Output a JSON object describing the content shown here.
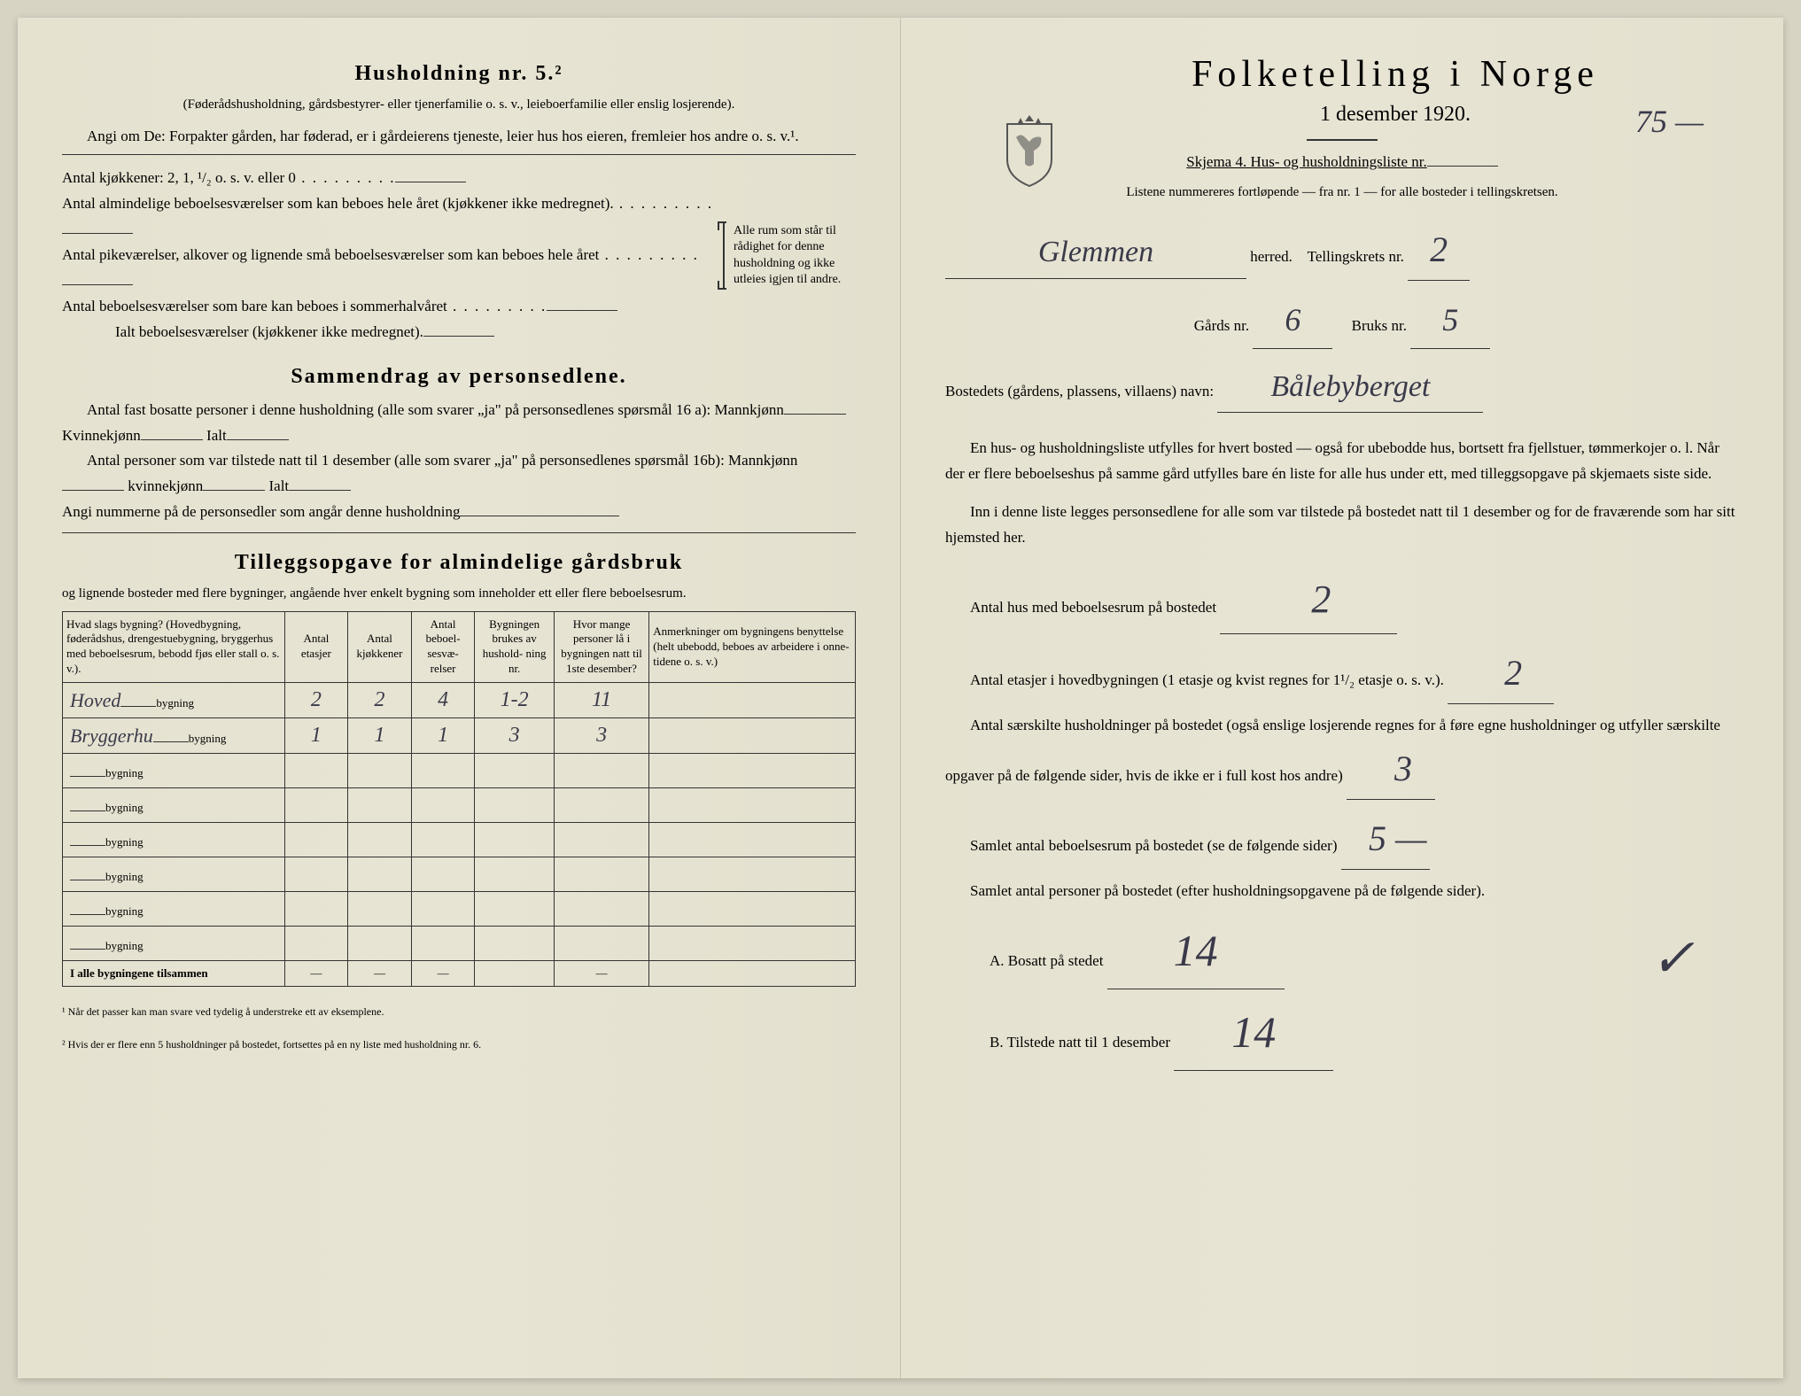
{
  "left": {
    "section1_title": "Husholdning nr. 5.²",
    "section1_subtitle": "(Føderådshusholdning, gårdsbestyrer- eller tjenerfamilie o. s. v., leieboerfamilie eller enslig losjerende).",
    "section1_line1": "Angi om De: Forpakter gården, har føderad, er i gårdeierens tjeneste, leier hus hos eieren, fremleier hos andre o. s. v.¹.",
    "kitchen_line": "Antal kjøkkener: 2, 1, ¹/₂ o. s. v. eller 0",
    "rooms_line1": "Antal almindelige beboelsesværelser som kan beboes hele året (kjøkkener ikke medregnet).",
    "rooms_line2": "Antal pikeværelser, alkover og lignende små beboelsesværelser som kan beboes hele året",
    "rooms_line3": "Antal beboelsesværelser som bare kan beboes i sommerhalvåret",
    "rooms_total": "Ialt beboelsesværelser (kjøkkener ikke medregnet).",
    "brace_text": "Alle rum som står til rådighet for denne husholdning og ikke utleies igjen til andre.",
    "section2_title": "Sammendrag av personsedlene.",
    "section2_line1": "Antal fast bosatte personer i denne husholdning (alle som svarer „ja\" på personsedlenes spørsmål 16 a): Mannkjønn",
    "section2_kvinne": "Kvinnekjønn",
    "section2_ialt": "Ialt",
    "section2_line2": "Antal personer som var tilstede natt til 1 desember (alle som svarer „ja\" på personsedlenes spørsmål 16b): Mannkjønn",
    "section2_kvinne2": "kvinnekjønn",
    "section2_ialt2": "Ialt",
    "section2_line3": "Angi nummerne på de personsedler som angår denne husholdning",
    "section3_title": "Tilleggsopgave for almindelige gårdsbruk",
    "section3_subtitle": "og lignende bosteder med flere bygninger, angående hver enkelt bygning som inneholder ett eller flere beboelsesrum.",
    "table": {
      "headers": [
        "Hvad slags bygning?\n(Hovedbygning, føderådshus, drengestuebygning, bryggerhus med beboelsesrum, bebodd fjøs eller stall o. s. v.).",
        "Antal\netasjer",
        "Antal\nkjøkkener",
        "Antal\nbeboel-\nsesvæ-\nrelser",
        "Bygningen\nbrukes av\nhushold-\nning nr.",
        "Hvor mange\npersoner lå\ni bygningen\nnatt til 1ste\ndesember?",
        "Anmerkninger om bygningens benyttelse (helt ubebodd, beboes av arbeidere i onne-tidene o. s. v.)"
      ],
      "rows": [
        {
          "label_hw": "Hoved",
          "label": "bygning",
          "c1": "2",
          "c2": "2",
          "c3": "4",
          "c4": "1-2",
          "c5": "11",
          "c6": ""
        },
        {
          "label_hw": "Bryggerhu",
          "label": "bygning",
          "c1": "1",
          "c2": "1",
          "c3": "1",
          "c4": "3",
          "c5": "3",
          "c6": ""
        },
        {
          "label_hw": "",
          "label": "bygning",
          "c1": "",
          "c2": "",
          "c3": "",
          "c4": "",
          "c5": "",
          "c6": ""
        },
        {
          "label_hw": "",
          "label": "bygning",
          "c1": "",
          "c2": "",
          "c3": "",
          "c4": "",
          "c5": "",
          "c6": ""
        },
        {
          "label_hw": "",
          "label": "bygning",
          "c1": "",
          "c2": "",
          "c3": "",
          "c4": "",
          "c5": "",
          "c6": ""
        },
        {
          "label_hw": "",
          "label": "bygning",
          "c1": "",
          "c2": "",
          "c3": "",
          "c4": "",
          "c5": "",
          "c6": ""
        },
        {
          "label_hw": "",
          "label": "bygning",
          "c1": "",
          "c2": "",
          "c3": "",
          "c4": "",
          "c5": "",
          "c6": ""
        },
        {
          "label_hw": "",
          "label": "bygning",
          "c1": "",
          "c2": "",
          "c3": "",
          "c4": "",
          "c5": "",
          "c6": ""
        }
      ],
      "footer_label": "I alle bygningene tilsammen",
      "footer_cells": [
        "—",
        "—",
        "—",
        "",
        "—",
        ""
      ]
    },
    "footnote1": "¹ Når det passer kan man svare ved tydelig å understreke ett av eksemplene.",
    "footnote2": "² Hvis der er flere enn 5 husholdninger på bostedet, fortsettes på en ny liste med husholdning nr. 6."
  },
  "right": {
    "main_title": "Folketelling i Norge",
    "subtitle": "1 desember 1920.",
    "handwritten_75": "75 —",
    "skjema_line": "Skjema 4. Hus- og husholdningsliste nr.",
    "listene_line": "Listene nummereres fortløpende — fra nr. 1 — for alle bosteder i tellingskretsen.",
    "herred_hw": "Glemmen",
    "herred_label": "herred.",
    "tellingskrets_label": "Tellingskrets nr.",
    "tellingskrets_hw": "2",
    "gards_label": "Gårds nr.",
    "gards_hw": "6",
    "bruks_label": "Bruks nr.",
    "bruks_hw": "5",
    "bostedets_label": "Bostedets (gårdens, plassens, villaens) navn:",
    "bostedets_hw": "Bålebyberget",
    "para1": "En hus- og husholdningsliste utfylles for hvert bosted — også for ubebodde hus, bortsett fra fjellstuer, tømmerkojer o. l. Når der er flere beboelseshus på samme gård utfylles bare én liste for alle hus under ett, med tilleggsopgave på skjemaets siste side.",
    "para2": "Inn i denne liste legges personsedlene for alle som var tilstede på bostedet natt til 1 desember og for de fraværende som har sitt hjemsted her.",
    "antal_hus_label": "Antal hus med beboelsesrum på bostedet",
    "antal_hus_hw": "2",
    "antal_etasjer_label_pre": "Antal etasjer i ",
    "antal_etasjer_label_mid": "hovedbygningen (1 etasje og kvist regnes for 1¹/₂ etasje o. s. v.).",
    "antal_etasjer_hw": "2",
    "antal_sarskilt_label": "Antal særskilte husholdninger på bostedet (også enslige losjerende regnes for å føre egne husholdninger og utfyller særskilte opgaver på de følgende sider, hvis de ikke er i full kost hos andre)",
    "antal_sarskilt_hw": "3",
    "samlet_rooms_label": "Samlet antal beboelsesrum på bostedet (se de følgende sider)",
    "samlet_rooms_hw": "5 —",
    "samlet_personer_label": "Samlet antal personer på bostedet (efter husholdningsopgavene på de følgende sider).",
    "bosatt_label": "A. Bosatt på stedet",
    "bosatt_hw": "14",
    "tilstede_label": "B. Tilstede natt til 1 desember",
    "tilstede_hw": "14",
    "check_hw": "✓"
  },
  "colors": {
    "paper": "#e8e4d4",
    "ink": "#1a1a1a",
    "handwriting": "#3a3a4a"
  }
}
